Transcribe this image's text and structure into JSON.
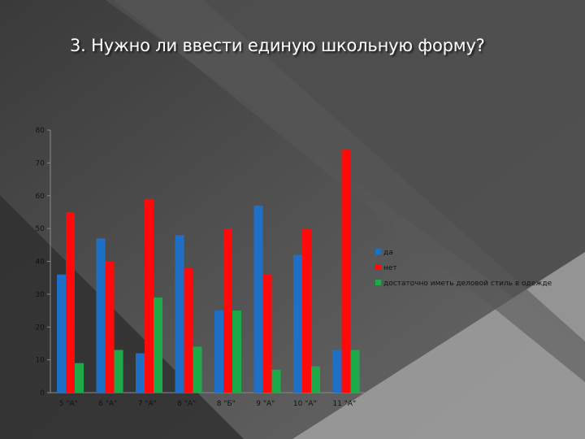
{
  "slide": {
    "title": "3. Нужно ли ввести единую школьную форму?"
  },
  "colors": {
    "background_dark": "#3b3b3b",
    "background_light": "#9a9a9a",
    "title": "#ffffff"
  },
  "chart_data": {
    "type": "bar",
    "title": "",
    "xlabel": "",
    "ylabel": "",
    "categories": [
      "5 \"А\"",
      "6 \"А\"",
      "7 \"А\"",
      "8 \"А\"",
      "8 \"Б\"",
      "9 \"А\"",
      "10 \"А\"",
      "11 \"А\""
    ],
    "series": [
      {
        "name": "да",
        "color": "#1f6fc6",
        "values": [
          36,
          47,
          12,
          48,
          25,
          57,
          42,
          13
        ]
      },
      {
        "name": "нет",
        "color": "#ff0a0a",
        "values": [
          55,
          40,
          59,
          38,
          50,
          36,
          50,
          74
        ]
      },
      {
        "name": "достаточно иметь деловой стиль в одежде",
        "color": "#1faa4a",
        "values": [
          9,
          13,
          29,
          14,
          25,
          7,
          8,
          13
        ]
      }
    ],
    "ylim": [
      0,
      80
    ],
    "yticks": [
      0,
      10,
      20,
      30,
      40,
      50,
      60,
      70,
      80
    ],
    "grid": false,
    "legend_position": "right"
  }
}
